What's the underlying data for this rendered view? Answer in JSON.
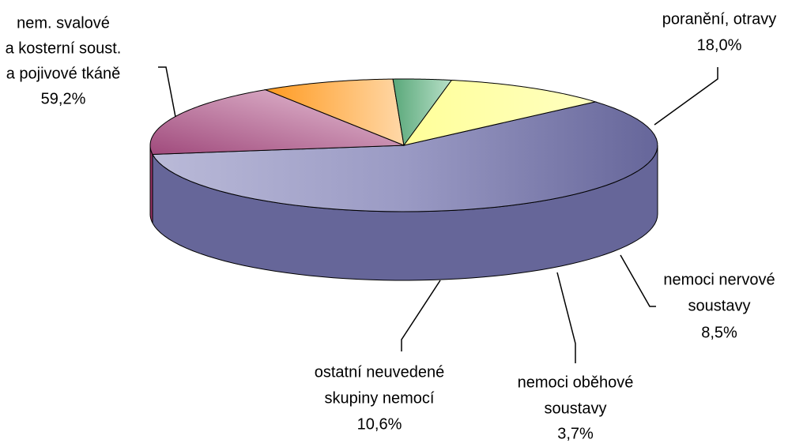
{
  "chart_data": {
    "type": "pie",
    "categories": [
      [
        "nem. svalové",
        "a kosterní soust.",
        "a pojivové tkáně"
      ],
      [
        "poranění, otravy"
      ],
      [
        "nemoci nervové",
        "soustavy"
      ],
      [
        "nemoci oběhové",
        "soustavy"
      ],
      [
        "ostatní neuvedené",
        "skupiny nemocí"
      ]
    ],
    "values": [
      59.2,
      18.0,
      8.5,
      3.7,
      10.6
    ],
    "value_labels": [
      "59,2%",
      "18,0%",
      "8,5%",
      "3,7%",
      "10,6%"
    ],
    "colors": [
      "#9999c4",
      "#cc88aa",
      "#ffb866",
      "#80c09a",
      "#ffff99"
    ]
  }
}
